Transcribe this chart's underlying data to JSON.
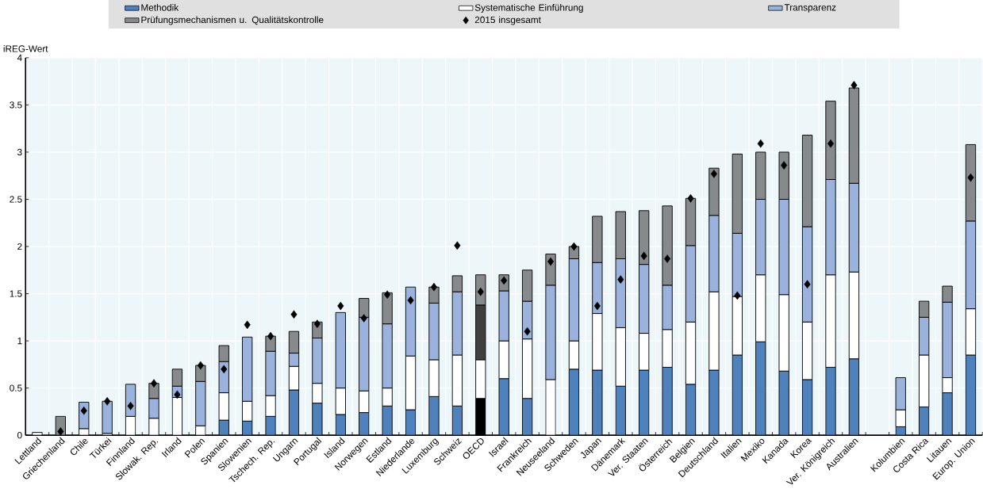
{
  "chart_data": {
    "type": "bar",
    "stacked": true,
    "ylabel": "iREG-Wert",
    "categories": [
      "Lettland",
      "Griechenland",
      "Chile",
      "Türkei",
      "Finnland",
      "Slowak. Rep.",
      "Irland",
      "Polen",
      "Spanien",
      "Slowenien",
      "Tschech. Rep.",
      "Ungarn",
      "Portugal",
      "Island",
      "Norwegen",
      "Estland",
      "Niederlande",
      "Luxemburg",
      "Schweiz",
      "OECD",
      "Israel",
      "Frankreich",
      "Neuseeland",
      "Schweden",
      "Japan",
      "Dänemark",
      "Ver. Staaten",
      "Österreich",
      "Belgien",
      "Deutschland",
      "Italien",
      "Mexiko",
      "Kanada",
      "Korea",
      "Ver. Königreich",
      "Australien",
      null,
      "Kolumbien",
      "Costa Rica",
      "Litauen",
      "Europ. Union"
    ],
    "series": [
      {
        "name": "Methodik",
        "color": "#4f81bd",
        "values": [
          0,
          0,
          0,
          0,
          0,
          0,
          0,
          0,
          0.16,
          0.15,
          0.2,
          0.48,
          0.34,
          0.22,
          0.24,
          0.31,
          0.27,
          0.41,
          0.31,
          0.39,
          0.6,
          0.39,
          0,
          0.7,
          0.69,
          0.52,
          0.69,
          0.72,
          0.54,
          0.69,
          0.85,
          0.99,
          0.68,
          0.59,
          0.72,
          0.81,
          null,
          0.09,
          0.3,
          0.45,
          0.85
        ],
        "colors": [
          "#4f81bd",
          "#4f81bd",
          "#4f81bd",
          "#4f81bd",
          "#4f81bd",
          "#4f81bd",
          "#4f81bd",
          "#4f81bd",
          "#4f81bd",
          "#4f81bd",
          "#4f81bd",
          "#4f81bd",
          "#4f81bd",
          "#4f81bd",
          "#4f81bd",
          "#4f81bd",
          "#4f81bd",
          "#4f81bd",
          "#4f81bd",
          "#000000",
          "#4f81bd",
          "#4f81bd",
          "#4f81bd",
          "#4f81bd",
          "#4f81bd",
          "#4f81bd",
          "#4f81bd",
          "#4f81bd",
          "#4f81bd",
          "#4f81bd",
          "#4f81bd",
          "#4f81bd",
          "#4f81bd",
          "#4f81bd",
          "#4f81bd",
          "#4f81bd",
          "#4f81bd",
          "#4f81bd",
          "#4f81bd",
          "#4f81bd",
          "#4f81bd"
        ]
      },
      {
        "name": "Systematische Einführung",
        "color": "#ffffff",
        "values": [
          0.03,
          0,
          0.07,
          0.02,
          0.2,
          0.18,
          0.4,
          0.1,
          0.29,
          0.21,
          0.22,
          0.25,
          0.21,
          0.28,
          0.23,
          0.19,
          0.57,
          0.39,
          0.54,
          0.41,
          0.4,
          0.63,
          0.59,
          0.3,
          0.6,
          0.62,
          0.39,
          0.4,
          0.66,
          0.83,
          0.62,
          0.71,
          0.81,
          0.61,
          0.98,
          0.92,
          null,
          0.18,
          0.55,
          0.16,
          0.49
        ]
      },
      {
        "name": "Transparenz",
        "color": "#9bb3dc",
        "values": [
          0,
          0,
          0.28,
          0.34,
          0.34,
          0.21,
          0.12,
          0.47,
          0.33,
          0.68,
          0.47,
          0.14,
          0.48,
          0.8,
          0.78,
          0.68,
          0.73,
          0.6,
          0.67,
          0.58,
          0.53,
          0.4,
          1.0,
          0.87,
          0.54,
          0.73,
          0.73,
          0.47,
          0.81,
          0.81,
          0.67,
          0.8,
          1.01,
          1.01,
          1.01,
          0.94,
          null,
          0.34,
          0.4,
          0.8,
          0.93
        ],
        "colors": [
          "#9bb3dc",
          "#9bb3dc",
          "#9bb3dc",
          "#9bb3dc",
          "#9bb3dc",
          "#9bb3dc",
          "#9bb3dc",
          "#9bb3dc",
          "#9bb3dc",
          "#9bb3dc",
          "#9bb3dc",
          "#9bb3dc",
          "#9bb3dc",
          "#9bb3dc",
          "#9bb3dc",
          "#9bb3dc",
          "#9bb3dc",
          "#9bb3dc",
          "#9bb3dc",
          "#404040",
          "#9bb3dc",
          "#9bb3dc",
          "#9bb3dc",
          "#9bb3dc",
          "#9bb3dc",
          "#9bb3dc",
          "#9bb3dc",
          "#9bb3dc",
          "#9bb3dc",
          "#9bb3dc",
          "#9bb3dc",
          "#9bb3dc",
          "#9bb3dc",
          "#9bb3dc",
          "#9bb3dc",
          "#9bb3dc",
          "#9bb3dc",
          "#9bb3dc",
          "#9bb3dc",
          "#9bb3dc",
          "#9bb3dc"
        ]
      },
      {
        "name": "Prüfungsmechanismen u. Qualitätskontrolle",
        "color": "#878a8c",
        "values": [
          0,
          0.2,
          0,
          0,
          0,
          0.16,
          0.18,
          0.17,
          0.17,
          0,
          0.16,
          0.23,
          0.17,
          0,
          0.2,
          0.33,
          0,
          0.17,
          0.17,
          0.32,
          0.17,
          0.33,
          0.33,
          0.13,
          0.49,
          0.5,
          0.57,
          0.84,
          0.5,
          0.5,
          0.84,
          0.5,
          0.5,
          0.97,
          0.83,
          1.01,
          null,
          0,
          0.17,
          0.17,
          0.81
        ]
      },
      {
        "name": "2015 insgesamt",
        "type": "scatter",
        "marker": "diamond",
        "color": "#000000",
        "values": [
          null,
          0.04,
          0.26,
          0.36,
          0.31,
          0.55,
          0.43,
          0.74,
          0.7,
          1.17,
          1.05,
          1.28,
          1.18,
          1.37,
          1.24,
          1.49,
          1.43,
          1.57,
          2.01,
          1.52,
          1.64,
          1.1,
          1.84,
          2.0,
          1.37,
          1.65,
          1.9,
          1.87,
          2.51,
          2.77,
          1.48,
          3.09,
          2.86,
          1.6,
          3.09,
          3.71,
          null,
          null,
          null,
          null,
          2.73
        ]
      }
    ],
    "ylim": [
      0,
      4
    ],
    "yticks": [
      0,
      0.5,
      1,
      1.5,
      2,
      2.5,
      3,
      3.5,
      4
    ],
    "grid": true,
    "legend": "top"
  }
}
